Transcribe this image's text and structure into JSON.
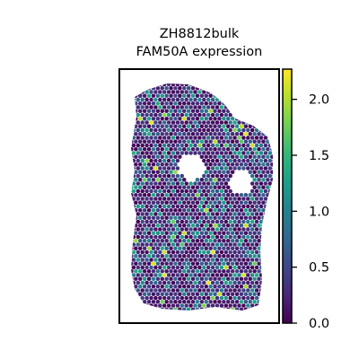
{
  "chart_data": {
    "type": "heatmap",
    "subtype": "spatial-hexagonal-spot-map",
    "title_line1": "ZH8812bulk",
    "title_line2": "FAM50A expression",
    "xlabel": "",
    "ylabel": "",
    "axes_ticks": false,
    "grid": false,
    "colormap": "viridis",
    "colorbar": {
      "position": "right",
      "range": [
        0.0,
        2.27
      ],
      "ticks": [
        0.0,
        0.5,
        1.0,
        1.5,
        2.0
      ],
      "tick_labels": [
        "0.0",
        "0.5",
        "1.0",
        "1.5",
        "2.0"
      ]
    },
    "value_distribution": {
      "min": 0.0,
      "max": 2.27,
      "typical_background": "0.0 - 0.4",
      "frequent_moderate": "0.8 - 1.4",
      "rare_high": "1.8 - 2.2"
    },
    "spot_count_approx": 2100,
    "tissue_holes": "two roughly circular voids in the upper-middle of the section"
  },
  "colors": {
    "frame": "#000000",
    "background": "#ffffff",
    "viridis_stops": [
      "#440154",
      "#482878",
      "#3e4989",
      "#31688e",
      "#26828e",
      "#1f9e89",
      "#35b779",
      "#6ece58",
      "#b5de2b",
      "#fde725"
    ]
  }
}
